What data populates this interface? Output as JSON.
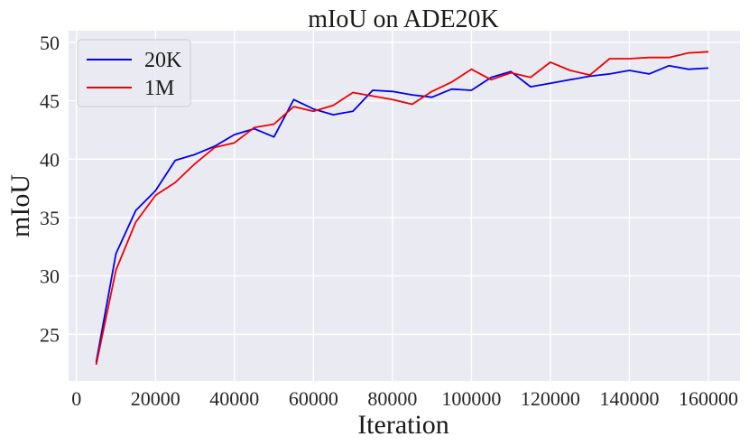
{
  "chart_data": {
    "type": "line",
    "title": "mIoU on ADE20K",
    "xlabel": "Iteration",
    "ylabel": "mIoU",
    "xlim": [
      -2000,
      168000
    ],
    "ylim": [
      21,
      51
    ],
    "xticks": [
      0,
      20000,
      40000,
      60000,
      80000,
      100000,
      120000,
      140000,
      160000
    ],
    "yticks": [
      25,
      30,
      35,
      40,
      45,
      50
    ],
    "grid": true,
    "background": "#eaeaf2",
    "legend_placement": "top-left",
    "x": [
      5000,
      10000,
      15000,
      20000,
      25000,
      30000,
      35000,
      40000,
      45000,
      50000,
      55000,
      60000,
      65000,
      70000,
      75000,
      80000,
      85000,
      90000,
      95000,
      100000,
      105000,
      110000,
      115000,
      120000,
      125000,
      130000,
      135000,
      140000,
      145000,
      150000,
      155000,
      160000
    ],
    "series": [
      {
        "name": "20K",
        "color": "#0000ee",
        "values": [
          22.6,
          31.9,
          35.6,
          37.3,
          39.9,
          40.4,
          41.1,
          42.1,
          42.6,
          41.9,
          45.1,
          44.3,
          43.8,
          44.1,
          45.9,
          45.8,
          45.5,
          45.3,
          46.0,
          45.9,
          47.0,
          47.5,
          46.2,
          46.5,
          46.8,
          47.1,
          47.3,
          47.6,
          47.3,
          48.0,
          47.7,
          47.8
        ]
      },
      {
        "name": "1M",
        "color": "#ee0000",
        "values": [
          22.4,
          30.5,
          34.6,
          36.9,
          38.0,
          39.6,
          41.0,
          41.4,
          42.7,
          43.0,
          44.5,
          44.1,
          44.6,
          45.7,
          45.4,
          45.1,
          44.7,
          45.8,
          46.6,
          47.7,
          46.8,
          47.4,
          47.0,
          48.3,
          47.6,
          47.2,
          48.6,
          48.6,
          48.7,
          48.7,
          49.1,
          49.2
        ]
      }
    ]
  }
}
